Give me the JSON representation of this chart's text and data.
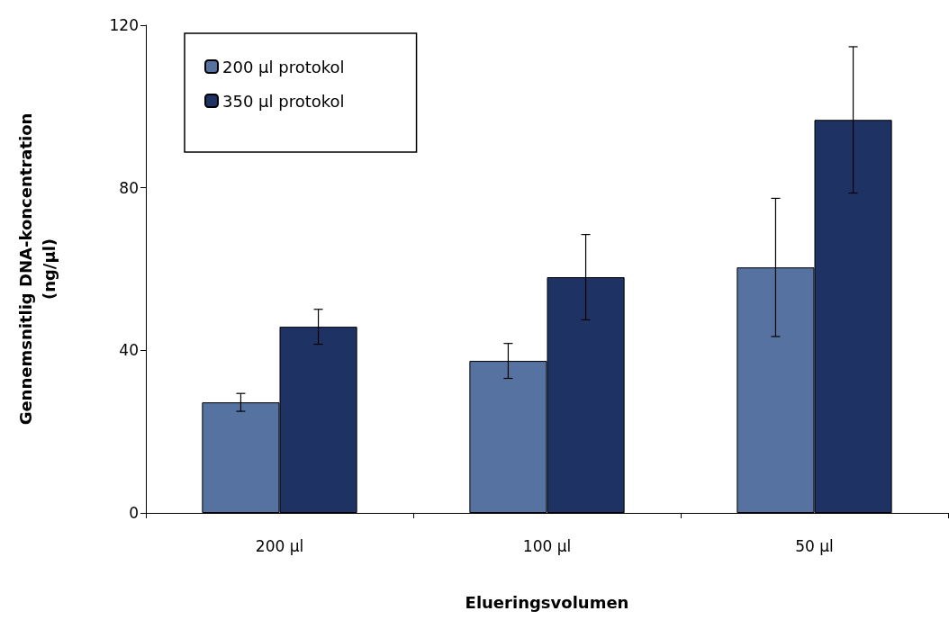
{
  "chart_data": {
    "type": "bar",
    "xlabel": "Elueringsvolumen",
    "ylabel": "Gennemsnitlig DNA-koncentration\n(ng/µl)",
    "categories": [
      "200 µl",
      "100 µl",
      "50 µl"
    ],
    "series": [
      {
        "name": "200 µl protokol",
        "color": "#5572a0",
        "values": [
          27.2,
          37.4,
          60.4
        ],
        "errors": [
          2.2,
          4.3,
          17
        ]
      },
      {
        "name": "350 µl protokol",
        "color": "#1e3264",
        "values": [
          45.8,
          58,
          96.7
        ],
        "errors": [
          4.3,
          10.5,
          18
        ]
      }
    ],
    "ylim": [
      0,
      120
    ],
    "yticks": [
      0,
      40,
      80,
      120
    ],
    "grid": false,
    "legend": "top left"
  }
}
